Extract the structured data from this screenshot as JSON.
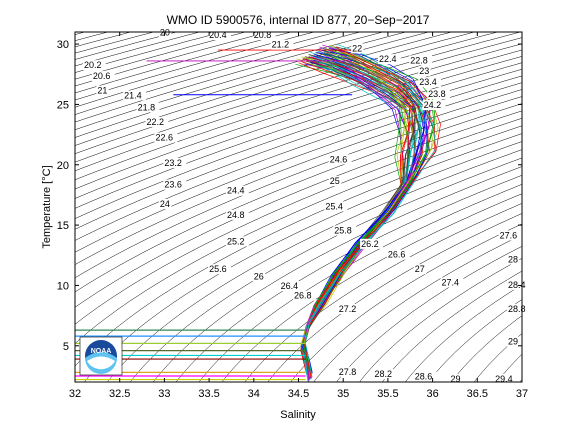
{
  "chart_data": {
    "type": "line",
    "title": "WMO ID 5900576, internal ID 877, 20−Sep−2017",
    "xlabel": "Salinity",
    "ylabel": "Temperature [°C]",
    "xlim": [
      32,
      37
    ],
    "ylim": [
      2,
      31
    ],
    "xticks": [
      "32",
      "32.5",
      "33",
      "33.5",
      "34",
      "34.5",
      "35",
      "35.5",
      "36",
      "36.5",
      "37"
    ],
    "yticks": [
      "5",
      "10",
      "15",
      "20",
      "25",
      "30"
    ],
    "grid": false,
    "legend": "none",
    "logo_text": "NOAA",
    "isopycnal_labels": [
      {
        "text": "20",
        "s": 32.95,
        "t": 30.7
      },
      {
        "text": "20.4",
        "s": 33.5,
        "t": 30.5
      },
      {
        "text": "20.8",
        "s": 34.0,
        "t": 30.5
      },
      {
        "text": "21.2",
        "s": 34.2,
        "t": 29.7
      },
      {
        "text": "20.2",
        "s": 32.1,
        "t": 28.0
      },
      {
        "text": "20.6",
        "s": 32.2,
        "t": 27.1
      },
      {
        "text": "21",
        "s": 32.25,
        "t": 25.9
      },
      {
        "text": "21.4",
        "s": 32.55,
        "t": 25.5
      },
      {
        "text": "21.8",
        "s": 32.7,
        "t": 24.5
      },
      {
        "text": "22.2",
        "s": 32.8,
        "t": 23.3
      },
      {
        "text": "22.6",
        "s": 32.9,
        "t": 22.0
      },
      {
        "text": "23.2",
        "s": 33.0,
        "t": 19.9
      },
      {
        "text": "23.6",
        "s": 33.0,
        "t": 18.1
      },
      {
        "text": "24",
        "s": 32.95,
        "t": 16.5
      },
      {
        "text": "24.4",
        "s": 33.7,
        "t": 17.6
      },
      {
        "text": "24.8",
        "s": 33.7,
        "t": 15.6
      },
      {
        "text": "25.2",
        "s": 33.7,
        "t": 13.4
      },
      {
        "text": "25.6",
        "s": 33.5,
        "t": 11.1
      },
      {
        "text": "26",
        "s": 34.0,
        "t": 10.5
      },
      {
        "text": "26.4",
        "s": 34.3,
        "t": 9.7
      },
      {
        "text": "26.8",
        "s": 34.45,
        "t": 8.9
      },
      {
        "text": "24.6",
        "s": 34.85,
        "t": 20.2
      },
      {
        "text": "25",
        "s": 34.85,
        "t": 18.4
      },
      {
        "text": "25.4",
        "s": 34.8,
        "t": 16.3
      },
      {
        "text": "25.8",
        "s": 34.9,
        "t": 14.3
      },
      {
        "text": "26.2",
        "s": 35.2,
        "t": 13.2
      },
      {
        "text": "26.6",
        "s": 35.5,
        "t": 12.3
      },
      {
        "text": "27",
        "s": 35.8,
        "t": 11.1
      },
      {
        "text": "27.4",
        "s": 36.1,
        "t": 10.0
      },
      {
        "text": "27.2",
        "s": 34.95,
        "t": 7.8
      },
      {
        "text": "27.6",
        "s": 36.75,
        "t": 13.9
      },
      {
        "text": "28",
        "s": 36.9,
        "t": 11.9
      },
      {
        "text": "28.4",
        "s": 36.95,
        "t": 9.8
      },
      {
        "text": "28.8",
        "s": 37.0,
        "t": 7.8
      },
      {
        "text": "29",
        "s": 37.0,
        "t": 5.1
      },
      {
        "text": "27.8",
        "s": 34.95,
        "t": 2.6
      },
      {
        "text": "28.2",
        "s": 35.35,
        "t": 2.4
      },
      {
        "text": "28.6",
        "s": 35.8,
        "t": 2.2
      },
      {
        "text": "29",
        "s": 36.2,
        "t": 2.0
      },
      {
        "text": "29.4",
        "s": 36.7,
        "t": 2.0
      },
      {
        "text": "22",
        "s": 35.1,
        "t": 29.4
      },
      {
        "text": "22.4",
        "s": 35.4,
        "t": 28.5
      },
      {
        "text": "22.8",
        "s": 35.75,
        "t": 28.4
      },
      {
        "text": "23",
        "s": 35.85,
        "t": 27.5
      },
      {
        "text": "23.4",
        "s": 35.85,
        "t": 26.6
      },
      {
        "text": "23.8",
        "s": 35.95,
        "t": 25.6
      },
      {
        "text": "24.2",
        "s": 35.9,
        "t": 24.7
      }
    ],
    "profiles": {
      "count": 60,
      "core": [
        {
          "s": 34.63,
          "t": 2.4
        },
        {
          "s": 34.6,
          "t": 3.5
        },
        {
          "s": 34.55,
          "t": 5.0
        },
        {
          "s": 34.6,
          "t": 6.5
        },
        {
          "s": 34.75,
          "t": 8.5
        },
        {
          "s": 34.95,
          "t": 11.0
        },
        {
          "s": 35.2,
          "t": 13.5
        },
        {
          "s": 35.5,
          "t": 16.0
        },
        {
          "s": 35.72,
          "t": 18.5
        },
        {
          "s": 35.82,
          "t": 21.0
        },
        {
          "s": 35.85,
          "t": 23.0
        },
        {
          "s": 35.8,
          "t": 24.8
        },
        {
          "s": 35.6,
          "t": 26.3
        },
        {
          "s": 35.3,
          "t": 27.5
        },
        {
          "s": 35.0,
          "t": 28.5
        },
        {
          "s": 34.7,
          "t": 29.2
        }
      ],
      "colors": [
        "#0000ff",
        "#00aa00",
        "#ff0000",
        "#00bfbf",
        "#bf00bf",
        "#bfbf00",
        "#404040"
      ]
    },
    "horizontal_bands": [
      {
        "t": 6.3,
        "color": "#2e8b57"
      },
      {
        "t": 5.8,
        "color": "#1e90ff"
      },
      {
        "t": 5.2,
        "color": "#9acd32"
      },
      {
        "t": 4.6,
        "color": "#556b2f"
      },
      {
        "t": 4.2,
        "color": "#00ced1"
      },
      {
        "t": 3.9,
        "color": "#8b0000"
      },
      {
        "t": 2.8,
        "color": "#daa520"
      },
      {
        "t": 2.5,
        "color": "#ff00ff"
      },
      {
        "t": 2.2,
        "color": "#cdcd00"
      }
    ],
    "outlier_lines": [
      {
        "s0": 32.8,
        "t": 28.6,
        "color": "#bf00bf"
      },
      {
        "s0": 33.1,
        "t": 25.8,
        "color": "#0000ff"
      },
      {
        "s0": 33.6,
        "t": 29.5,
        "color": "#ff0000"
      }
    ]
  }
}
